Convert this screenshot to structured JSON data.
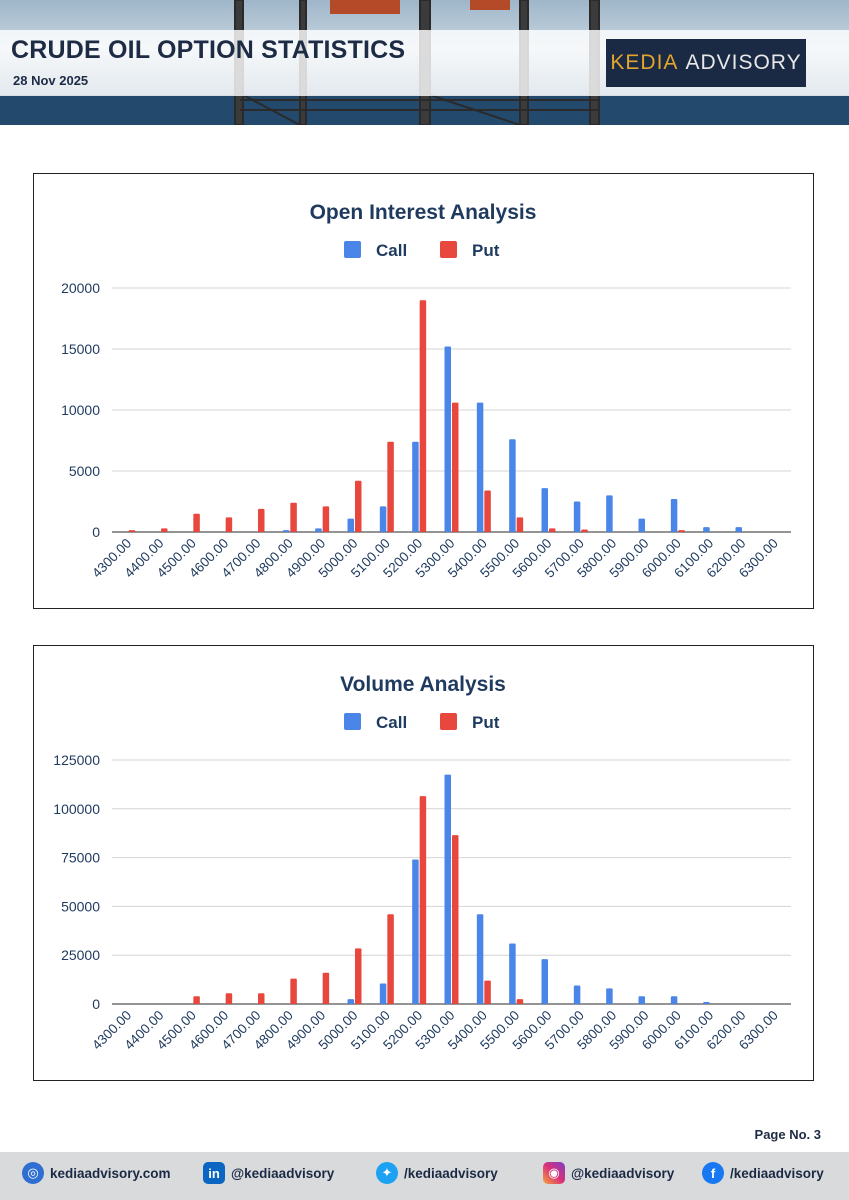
{
  "header": {
    "title": "CRUDE OIL OPTION STATISTICS",
    "date": "28 Nov 2025",
    "logo_word1": "KEDIA",
    "logo_word2": "ADVISORY"
  },
  "colors": {
    "call": "#4a86e8",
    "put": "#e8473e",
    "title": "#1f3a5f",
    "grid": "#d4d4d4",
    "axis": "#1f3a5f"
  },
  "chart_data": [
    {
      "type": "bar",
      "title": "Open Interest Analysis",
      "categories": [
        "4300.00",
        "4400.00",
        "4500.00",
        "4600.00",
        "4700.00",
        "4800.00",
        "4900.00",
        "5000.00",
        "5100.00",
        "5200.00",
        "5300.00",
        "5400.00",
        "5500.00",
        "5600.00",
        "5700.00",
        "5800.00",
        "5900.00",
        "6000.00",
        "6100.00",
        "6200.00",
        "6300.00"
      ],
      "series": [
        {
          "name": "Call",
          "values": [
            0,
            0,
            0,
            0,
            0,
            150,
            300,
            1100,
            2100,
            7400,
            15200,
            10600,
            7600,
            3600,
            2500,
            3000,
            1100,
            2700,
            400,
            400,
            0
          ]
        },
        {
          "name": "Put",
          "values": [
            150,
            300,
            1500,
            1200,
            1900,
            2400,
            2100,
            4200,
            7400,
            19000,
            10600,
            3400,
            1200,
            300,
            200,
            0,
            0,
            150,
            0,
            0,
            0
          ]
        }
      ],
      "ylim": [
        0,
        20000
      ],
      "yticks": [
        0,
        5000,
        10000,
        15000,
        20000
      ],
      "legend": "top-center"
    },
    {
      "type": "bar",
      "title": "Volume Analysis",
      "categories": [
        "4300.00",
        "4400.00",
        "4500.00",
        "4600.00",
        "4700.00",
        "4800.00",
        "4900.00",
        "5000.00",
        "5100.00",
        "5200.00",
        "5300.00",
        "5400.00",
        "5500.00",
        "5600.00",
        "5700.00",
        "5800.00",
        "5900.00",
        "6000.00",
        "6100.00",
        "6200.00",
        "6300.00"
      ],
      "series": [
        {
          "name": "Call",
          "values": [
            0,
            0,
            0,
            0,
            0,
            0,
            0,
            2500,
            10500,
            74000,
            117500,
            46000,
            31000,
            23000,
            9500,
            8000,
            4000,
            4000,
            1000,
            0,
            0
          ]
        },
        {
          "name": "Put",
          "values": [
            0,
            0,
            4000,
            5500,
            5500,
            13000,
            16000,
            28500,
            46000,
            106500,
            86500,
            12000,
            2500,
            0,
            0,
            0,
            0,
            0,
            0,
            0,
            0
          ]
        }
      ],
      "ylim": [
        0,
        125000
      ],
      "yticks": [
        0,
        25000,
        50000,
        75000,
        100000,
        125000
      ],
      "legend": "top-center"
    }
  ],
  "footer": {
    "page_no": "Page No. 3",
    "website": "kediaadvisory.com",
    "linkedin": "@kediaadvisory",
    "twitter": "/kediaadvisory",
    "instagram": "@kediaadvisory",
    "facebook": "/kediaadvisory",
    "icons": [
      "globe-icon",
      "linkedin-icon",
      "twitter-icon",
      "instagram-icon",
      "facebook-icon"
    ]
  }
}
